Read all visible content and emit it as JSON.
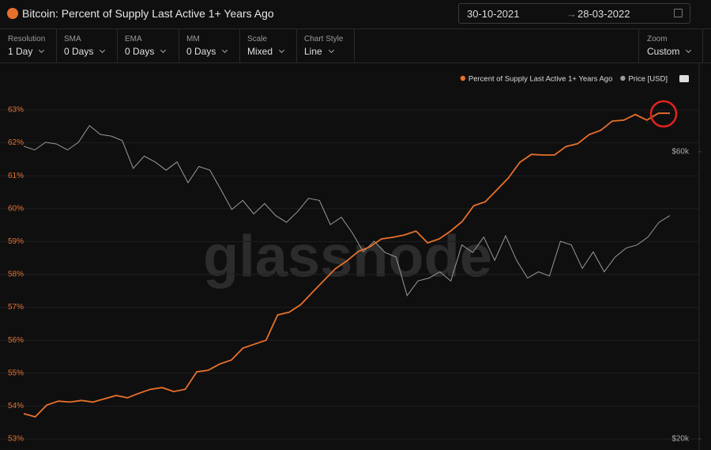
{
  "header": {
    "title": "Bitcoin: Percent of Supply Last Active 1+ Years Ago",
    "date_from": "30-10-2021",
    "date_to": "28-03-2022"
  },
  "controls": [
    {
      "label": "Resolution",
      "value": "1 Day"
    },
    {
      "label": "SMA",
      "value": "0 Days"
    },
    {
      "label": "EMA",
      "value": "0 Days"
    },
    {
      "label": "MM",
      "value": "0 Days"
    },
    {
      "label": "Scale",
      "value": "Mixed"
    },
    {
      "label": "Chart Style",
      "value": "Line"
    },
    {
      "label": "Zoom",
      "value": "Custom"
    }
  ],
  "chart_data": {
    "type": "line",
    "watermark": "glassnode",
    "legend": "top-right",
    "series": [
      {
        "name": "Percent of Supply Last Active 1+ Years Ago",
        "color": "#e8702a",
        "values": [
          53.77,
          53.67,
          54.03,
          54.15,
          54.12,
          54.17,
          54.12,
          54.22,
          54.32,
          54.25,
          54.39,
          54.51,
          54.56,
          54.44,
          54.51,
          55.04,
          55.09,
          55.28,
          55.4,
          55.76,
          55.88,
          56.0,
          56.77,
          56.85,
          57.08,
          57.45,
          57.81,
          58.17,
          58.41,
          58.7,
          58.84,
          59.08,
          59.13,
          59.2,
          59.32,
          58.96,
          59.08,
          59.32,
          59.61,
          60.09,
          60.21,
          60.57,
          60.93,
          61.41,
          61.65,
          61.63,
          61.63,
          61.89,
          61.97,
          62.25,
          62.38,
          62.66,
          62.69,
          62.86,
          62.69,
          62.9,
          62.9
        ]
      },
      {
        "name": "Price [USD]",
        "color": "#9a9a9a",
        "axis": "y2",
        "values": [
          61300,
          60400,
          62200,
          61800,
          60400,
          62200,
          66300,
          64100,
          63700,
          62600,
          56300,
          59000,
          57700,
          55900,
          57700,
          53300,
          56700,
          55900,
          51900,
          48100,
          49800,
          47300,
          49200,
          47000,
          45800,
          47700,
          50200,
          49800,
          45400,
          46700,
          44000,
          40900,
          42600,
          40800,
          40100,
          34600,
          36600,
          37000,
          37900,
          36600,
          42000,
          40800,
          43300,
          39600,
          43500,
          39600,
          37000,
          37900,
          37300,
          42600,
          42000,
          38400,
          40900,
          37900,
          40100,
          41500,
          42000,
          43300,
          45800,
          47000
        ]
      }
    ],
    "ylim": [
      53,
      63
    ],
    "yticks": [
      {
        "value": 53,
        "label": "53%"
      },
      {
        "value": 54,
        "label": "54%"
      },
      {
        "value": 55,
        "label": "55%"
      },
      {
        "value": 56,
        "label": "56%"
      },
      {
        "value": 57,
        "label": "57%"
      },
      {
        "value": 58,
        "label": "58%"
      },
      {
        "value": 59,
        "label": "59%"
      },
      {
        "value": 60,
        "label": "60%"
      },
      {
        "value": 61,
        "label": "61%"
      },
      {
        "value": 62,
        "label": "62%"
      },
      {
        "value": 63,
        "label": "63%"
      }
    ],
    "y2lim": [
      20000,
      70400
    ],
    "y2ticks": [
      {
        "value": 20000,
        "label": "$20k"
      },
      {
        "value": 60000,
        "label": "$60k"
      }
    ],
    "y2_log": true,
    "grid": true
  }
}
